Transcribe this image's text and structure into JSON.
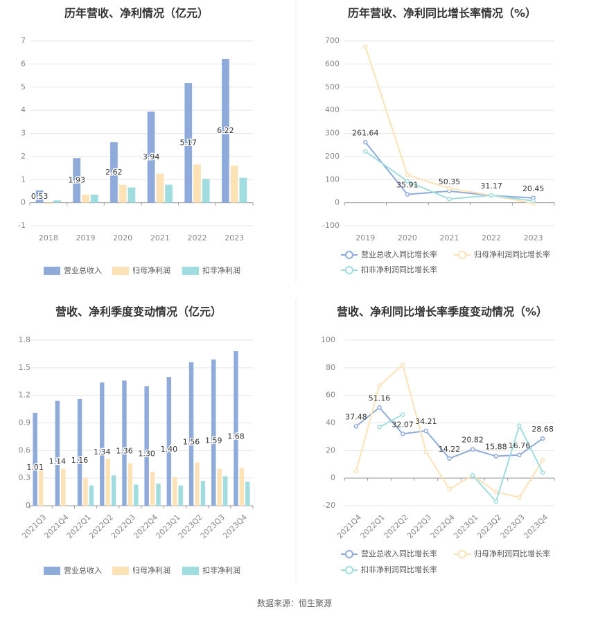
{
  "source": "数据来源：恒生聚源",
  "colors": {
    "revenue": "#8eabdb",
    "net": "#fde2b5",
    "deducted": "#9fdde0",
    "grid": "#e6e6e6",
    "axis": "#999999"
  },
  "chart_data": [
    {
      "type": "bar",
      "title": "历年营收、净利情况（亿元）",
      "categories": [
        "2018",
        "2019",
        "2020",
        "2021",
        "2022",
        "2023"
      ],
      "ylim": [
        -1,
        7
      ],
      "yticks": [
        "-1",
        "0",
        "1",
        "2",
        "3",
        "4",
        "5",
        "6",
        "7"
      ],
      "grid": true,
      "legend_position": "bottom",
      "series": [
        {
          "name": "营业总收入",
          "values": [
            0.53,
            1.93,
            2.62,
            3.94,
            5.17,
            6.22
          ],
          "labels": [
            "0.53",
            "1.93",
            "2.62",
            "3.94",
            "5.17",
            "6.22"
          ]
        },
        {
          "name": "归母净利润",
          "values": [
            -0.05,
            0.35,
            0.77,
            1.25,
            1.65,
            1.6
          ]
        },
        {
          "name": "扣非净利润",
          "values": [
            0.1,
            0.35,
            0.66,
            0.78,
            1.03,
            1.08
          ]
        }
      ]
    },
    {
      "type": "line",
      "title": "历年营收、净利同比增长率情况（%）",
      "categories": [
        "2019",
        "2020",
        "2021",
        "2022",
        "2023"
      ],
      "ylim": [
        -100,
        700
      ],
      "yticks": [
        "-100",
        "0",
        "100",
        "200",
        "300",
        "400",
        "500",
        "600",
        "700"
      ],
      "grid": true,
      "legend_position": "bottom",
      "series": [
        {
          "name": "营业总收入同比增长率",
          "values": [
            261.64,
            35.91,
            50.35,
            31.17,
            20.45
          ],
          "labels": [
            "261.64",
            "35.91",
            "50.35",
            "31.17",
            "20.45"
          ]
        },
        {
          "name": "归母净利润同比增长率",
          "values": [
            675,
            120,
            62,
            32,
            -3
          ]
        },
        {
          "name": "扣非净利润同比增长率",
          "values": [
            222,
            93,
            16,
            32,
            8
          ]
        }
      ]
    },
    {
      "type": "bar",
      "title": "营收、净利季度变动情况（亿元）",
      "categories": [
        "2021Q3",
        "2021Q4",
        "2022Q1",
        "2022Q2",
        "2022Q3",
        "2022Q4",
        "2023Q1",
        "2023Q2",
        "2023Q3",
        "2023Q4"
      ],
      "ylim": [
        0,
        1.8
      ],
      "yticks": [
        "0",
        "0.3",
        "0.6",
        "0.9",
        "1.2",
        "1.5",
        "1.8"
      ],
      "grid": true,
      "legend_position": "bottom",
      "series": [
        {
          "name": "营业总收入",
          "values": [
            1.01,
            1.14,
            1.16,
            1.34,
            1.36,
            1.3,
            1.4,
            1.56,
            1.59,
            1.68
          ],
          "labels": [
            "1.01",
            "1.14",
            "1.16",
            "1.34",
            "1.36",
            "1.30",
            "1.40",
            "1.56",
            "1.59",
            "1.68"
          ]
        },
        {
          "name": "归母净利润",
          "values": [
            0.39,
            0.4,
            0.3,
            0.51,
            0.46,
            0.37,
            0.31,
            0.47,
            0.4,
            0.41
          ]
        },
        {
          "name": "扣非净利润",
          "values": [
            null,
            null,
            0.22,
            0.33,
            0.23,
            0.24,
            0.22,
            0.27,
            0.32,
            0.26
          ]
        }
      ]
    },
    {
      "type": "line",
      "title": "营收、净利同比增长率季度变动情况（%）",
      "categories": [
        "2021Q4",
        "2022Q1",
        "2022Q2",
        "2022Q3",
        "2022Q4",
        "2023Q1",
        "2023Q2",
        "2023Q3",
        "2023Q4"
      ],
      "ylim": [
        -20,
        100
      ],
      "yticks": [
        "-20",
        "0",
        "20",
        "40",
        "60",
        "80",
        "100"
      ],
      "grid": true,
      "legend_position": "bottom",
      "series": [
        {
          "name": "营业总收入同比增长率",
          "values": [
            37.48,
            51.16,
            32.07,
            34.21,
            14.22,
            20.82,
            15.88,
            16.76,
            28.68
          ],
          "labels": [
            "37.48",
            "51.16",
            "32.07",
            "34.21",
            "14.22",
            "20.82",
            "15.88",
            "16.76",
            "28.68"
          ]
        },
        {
          "name": "归母净利润同比增长率",
          "values": [
            5,
            67,
            82,
            19,
            -8,
            2,
            -10,
            -14,
            13
          ]
        },
        {
          "name": "扣非净利润同比增长率",
          "values": [
            null,
            37,
            46,
            null,
            null,
            2,
            -17,
            38,
            4
          ]
        }
      ]
    }
  ]
}
